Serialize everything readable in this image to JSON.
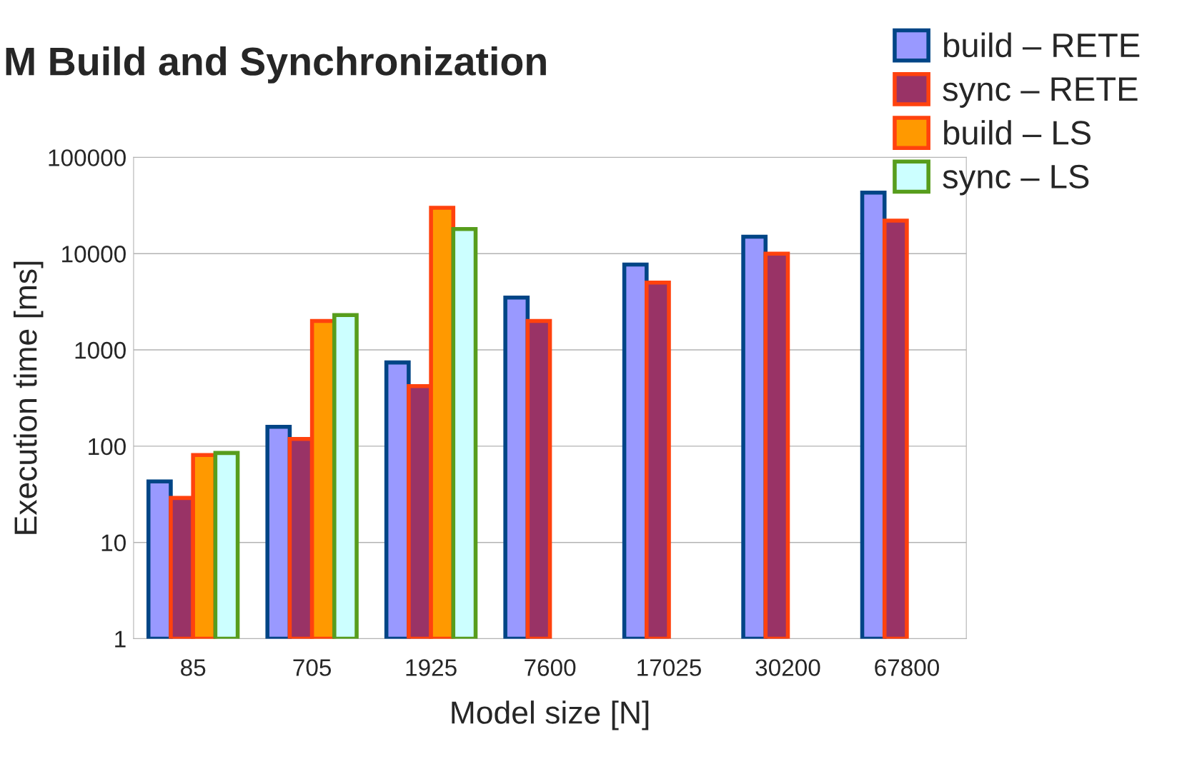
{
  "chart_data": {
    "type": "bar",
    "title": "M Build and Synchronization",
    "xlabel": "Model size [N]",
    "ylabel": "Execution time [ms]",
    "categories": [
      "85",
      "705",
      "1925",
      "7600",
      "17025",
      "30200",
      "67800"
    ],
    "series": [
      {
        "name": "build – RETE",
        "color": "#9999ff",
        "values": [
          42,
          158,
          740,
          3500,
          7700,
          15000,
          43000
        ]
      },
      {
        "name": "sync – RETE",
        "color": "#993366",
        "values": [
          28,
          118,
          420,
          2000,
          5000,
          10000,
          22000
        ]
      },
      {
        "name": "build – LS",
        "color": "#ff9900",
        "values": [
          80,
          2000,
          30000,
          null,
          null,
          null,
          null
        ]
      },
      {
        "name": "sync – LS",
        "color": "#ccffff",
        "values": [
          84,
          2300,
          18000,
          null,
          null,
          null,
          null
        ]
      }
    ],
    "log": "y",
    "ylim": [
      1,
      100000
    ],
    "yticks": [
      1,
      10,
      100,
      1000,
      10000,
      100000
    ],
    "grid": "y",
    "legend": "top right"
  }
}
